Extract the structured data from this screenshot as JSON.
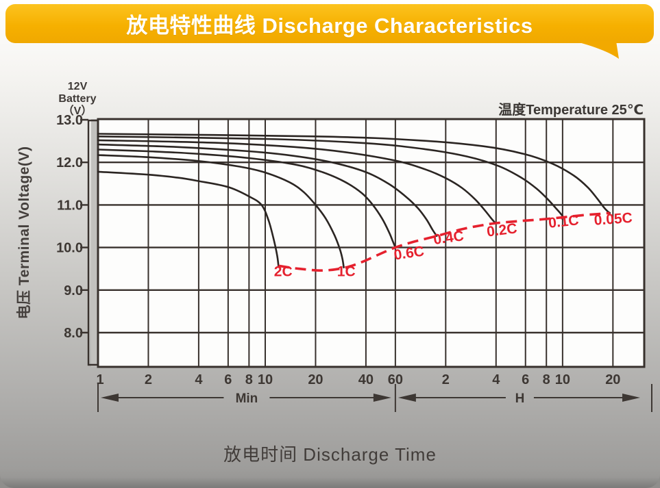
{
  "page": {
    "header": {
      "title": "放电特性曲线 Discharge Characteristics",
      "bg_color": "#F6B000"
    }
  },
  "chart_data": {
    "type": "line",
    "title": "放电特性曲线 Discharge Characteristics",
    "xlabel": "放电时间 Discharge Time",
    "ylabel": "电压 Terminal Voltage(V)",
    "battery_label_lines": [
      "12V",
      "Battery",
      "（V）"
    ],
    "temperature_note": "温度Temperature 25℃",
    "x_scale": "log",
    "x_ticks_minutes": [
      1,
      2,
      4,
      6,
      8,
      10,
      20,
      40,
      60
    ],
    "x_ticks_hours": [
      2,
      4,
      6,
      8,
      10,
      20
    ],
    "x_unit_ranges": [
      {
        "label": "Min",
        "from_min": 1,
        "to_min": 60
      },
      {
        "label": "H",
        "from_min": 60,
        "to_min": 1847
      }
    ],
    "y_ticks": [
      "13.0",
      "12.0",
      "11.0",
      "10.0",
      "9.0",
      "8.0"
    ],
    "y_tick_values": [
      13.0,
      12.0,
      11.0,
      10.0,
      9.0,
      8.0
    ],
    "ylim": [
      7.2,
      13.0
    ],
    "grid": true,
    "legend_position": "none",
    "grid_color": "#38312d",
    "curve_color": "#2b2522",
    "endline_color": "#e5212e",
    "series": [
      {
        "name": "0.05C",
        "points_t_min_V": [
          [
            1,
            12.67
          ],
          [
            20,
            12.61
          ],
          [
            80,
            12.52
          ],
          [
            200,
            12.38
          ],
          [
            350,
            12.2
          ],
          [
            520,
            11.97
          ],
          [
            700,
            11.69
          ],
          [
            850,
            11.41
          ],
          [
            970,
            11.14
          ],
          [
            1060,
            10.94
          ],
          [
            1115,
            10.85
          ],
          [
            1150,
            10.81
          ]
        ]
      },
      {
        "name": "0.1C",
        "points_t_min_V": [
          [
            1,
            12.61
          ],
          [
            10,
            12.55
          ],
          [
            40,
            12.45
          ],
          [
            90,
            12.31
          ],
          [
            160,
            12.14
          ],
          [
            250,
            11.91
          ],
          [
            340,
            11.64
          ],
          [
            420,
            11.38
          ],
          [
            490,
            11.13
          ],
          [
            545,
            10.93
          ],
          [
            580,
            10.81
          ],
          [
            607,
            10.71
          ]
        ]
      },
      {
        "name": "0.2C",
        "points_t_min_V": [
          [
            1,
            12.52
          ],
          [
            5,
            12.46
          ],
          [
            15,
            12.36
          ],
          [
            30,
            12.24
          ],
          [
            60,
            12.04
          ],
          [
            90,
            11.84
          ],
          [
            120,
            11.63
          ],
          [
            150,
            11.4
          ],
          [
            180,
            11.13
          ],
          [
            205,
            10.88
          ],
          [
            222,
            10.71
          ],
          [
            238,
            10.57
          ]
        ]
      },
      {
        "name": "0.4C",
        "points_t_min_V": [
          [
            1,
            12.42
          ],
          [
            3,
            12.36
          ],
          [
            8,
            12.26
          ],
          [
            15,
            12.15
          ],
          [
            25,
            12.0
          ],
          [
            40,
            11.77
          ],
          [
            55,
            11.49
          ],
          [
            70,
            11.18
          ],
          [
            82,
            10.92
          ],
          [
            92,
            10.66
          ],
          [
            100,
            10.42
          ],
          [
            106,
            10.27
          ]
        ]
      },
      {
        "name": "0.6C",
        "points_t_min_V": [
          [
            1,
            12.3
          ],
          [
            2,
            12.26
          ],
          [
            4,
            12.2
          ],
          [
            8,
            12.1
          ],
          [
            15,
            11.95
          ],
          [
            22,
            11.77
          ],
          [
            30,
            11.54
          ],
          [
            38,
            11.27
          ],
          [
            44,
            11.0
          ],
          [
            50,
            10.68
          ],
          [
            55,
            10.36
          ],
          [
            58,
            10.14
          ],
          [
            60,
            10.0
          ]
        ]
      },
      {
        "name": "1C",
        "points_t_min_V": [
          [
            1,
            12.17
          ],
          [
            2,
            12.12
          ],
          [
            4,
            12.03
          ],
          [
            7,
            11.9
          ],
          [
            10,
            11.76
          ],
          [
            14,
            11.53
          ],
          [
            17,
            11.3
          ],
          [
            20,
            11.0
          ],
          [
            23,
            10.68
          ],
          [
            26,
            10.28
          ],
          [
            28,
            9.95
          ],
          [
            29,
            9.72
          ],
          [
            29.5,
            9.53
          ]
        ]
      },
      {
        "name": "2C",
        "points_t_min_V": [
          [
            1,
            11.78
          ],
          [
            2,
            11.71
          ],
          [
            3,
            11.64
          ],
          [
            4,
            11.56
          ],
          [
            6,
            11.42
          ],
          [
            8,
            11.2
          ],
          [
            9.5,
            11.0
          ],
          [
            10.5,
            10.62
          ],
          [
            11.3,
            10.15
          ],
          [
            11.8,
            9.8
          ],
          [
            12,
            9.57
          ]
        ]
      }
    ],
    "end_of_discharge_line": {
      "name": "discharge-end-line",
      "style": "dashed",
      "points_t_min_V": [
        [
          12,
          9.57
        ],
        [
          16,
          9.5
        ],
        [
          22,
          9.46
        ],
        [
          29.5,
          9.52
        ],
        [
          38,
          9.66
        ],
        [
          48,
          9.84
        ],
        [
          60,
          10.0
        ],
        [
          75,
          10.12
        ],
        [
          106,
          10.27
        ],
        [
          150,
          10.43
        ],
        [
          190,
          10.51
        ],
        [
          238,
          10.57
        ],
        [
          330,
          10.62
        ],
        [
          450,
          10.66
        ],
        [
          607,
          10.71
        ],
        [
          800,
          10.76
        ],
        [
          1000,
          10.79
        ],
        [
          1150,
          10.81
        ]
      ]
    },
    "series_labels": [
      {
        "text": "2C",
        "t": 12.8,
        "v": 9.33,
        "rot": 0
      },
      {
        "text": "1C",
        "t": 30.5,
        "v": 9.33,
        "rot": 0
      },
      {
        "text": "0.6C",
        "t": 73,
        "v": 9.76,
        "rot": -8
      },
      {
        "text": "0.4C",
        "t": 126,
        "v": 10.12,
        "rot": -8
      },
      {
        "text": "0.2C",
        "t": 262,
        "v": 10.3,
        "rot": -7
      },
      {
        "text": "0.1C",
        "t": 612,
        "v": 10.5,
        "rot": -6
      },
      {
        "text": "0.05C",
        "t": 1210,
        "v": 10.56,
        "rot": -4
      }
    ]
  }
}
